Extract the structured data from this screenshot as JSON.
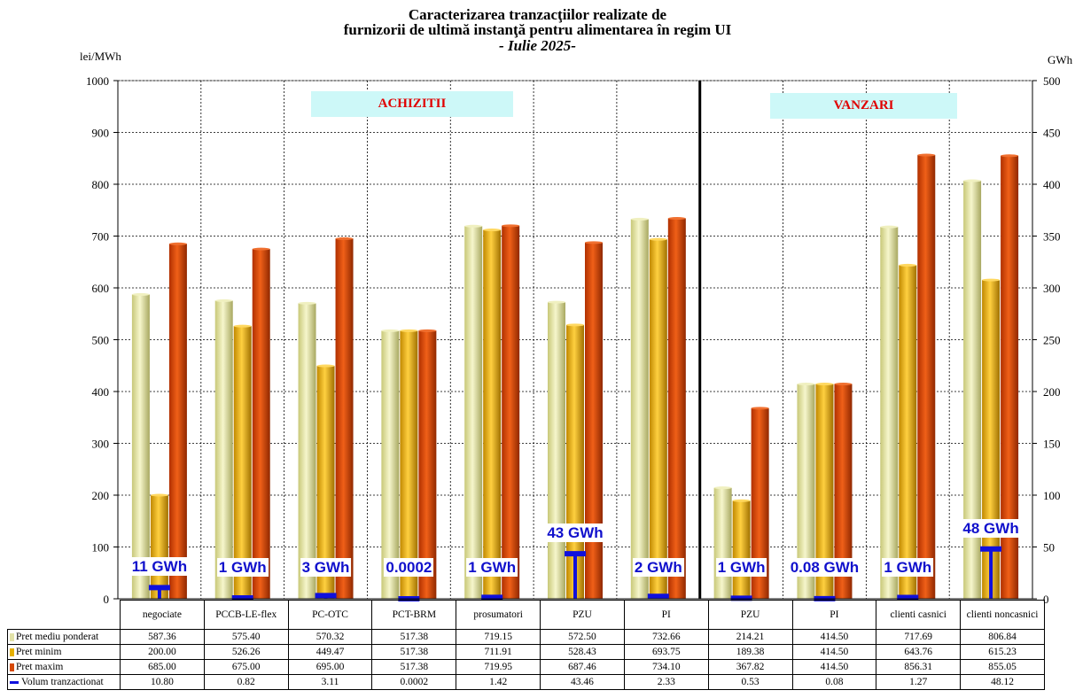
{
  "title": {
    "line1": "Caracterizarea tranzacţiilor realizate de",
    "line2": "furnizorii de ultimă instanţă pentru alimentarea în regim UI",
    "line3": "- Iulie 2025-"
  },
  "units": {
    "left": "lei/MWh",
    "right": "GWh"
  },
  "sections": {
    "purchases": "ACHIZITII",
    "sales": "VANZARI"
  },
  "colors": {
    "mediu": "#e2e2a8",
    "minim": "#e6b000",
    "maxim": "#d64a08",
    "volum": "#1010dd",
    "section_text": "#e00000",
    "section_bg": "#cdf8f8"
  },
  "chart_data": {
    "type": "bar",
    "categories": [
      "negociate",
      "PCCB-LE-flex",
      "PC-OTC",
      "PCT-BRM",
      "prosumatori",
      "PZU",
      "PI",
      "PZU",
      "PI",
      "clienti casnici",
      "clienti noncasnici"
    ],
    "series": [
      {
        "name": "Pret mediu ponderat",
        "axis": "left",
        "values": [
          587.36,
          575.4,
          570.32,
          517.38,
          719.15,
          572.5,
          732.66,
          214.21,
          414.5,
          717.69,
          806.84
        ],
        "display": [
          "587.36",
          "575.40",
          "570.32",
          "517.38",
          "719.15",
          "572.50",
          "732.66",
          "214.21",
          "414.50",
          "717.69",
          "806.84"
        ]
      },
      {
        "name": "Pret minim",
        "axis": "left",
        "values": [
          200.0,
          526.26,
          449.47,
          517.38,
          711.91,
          528.43,
          693.75,
          189.38,
          414.5,
          643.76,
          615.23
        ],
        "display": [
          "200.00",
          "526.26",
          "449.47",
          "517.38",
          "711.91",
          "528.43",
          "693.75",
          "189.38",
          "414.50",
          "643.76",
          "615.23"
        ]
      },
      {
        "name": "Pret maxim",
        "axis": "left",
        "values": [
          685.0,
          675.0,
          695.0,
          517.38,
          719.95,
          687.46,
          734.1,
          367.82,
          414.5,
          856.31,
          855.05
        ],
        "display": [
          "685.00",
          "675.00",
          "695.00",
          "517.38",
          "719.95",
          "687.46",
          "734.10",
          "367.82",
          "414.50",
          "856.31",
          "855.05"
        ]
      },
      {
        "name": "Volum tranzactionat",
        "axis": "right",
        "values": [
          10.8,
          0.82,
          3.11,
          0.0002,
          1.42,
          43.46,
          2.33,
          0.53,
          0.08,
          1.27,
          48.12
        ],
        "display": [
          "10.80",
          "0.82",
          "3.11",
          "0.0002",
          "1.42",
          "43.46",
          "2.33",
          "0.53",
          "0.08",
          "1.27",
          "48.12"
        ]
      }
    ],
    "volume_labels": [
      "11 GWh",
      "1 GWh",
      "3 GWh",
      "0.0002",
      "1 GWh",
      "43 GWh",
      "2 GWh",
      "1 GWh",
      "0.08 GWh",
      "1 GWh",
      "48 GWh"
    ],
    "y_left": {
      "min": 0,
      "max": 1000,
      "step": 100,
      "ticks": [
        "0",
        "100",
        "200",
        "300",
        "400",
        "500",
        "600",
        "700",
        "800",
        "900",
        "1000"
      ]
    },
    "y_right": {
      "min": 0,
      "max": 500,
      "step": 50,
      "ticks": [
        "0",
        "50",
        "100",
        "150",
        "200",
        "250",
        "300",
        "350",
        "400",
        "450",
        "500"
      ]
    },
    "grid": true,
    "legend": "table-below"
  }
}
